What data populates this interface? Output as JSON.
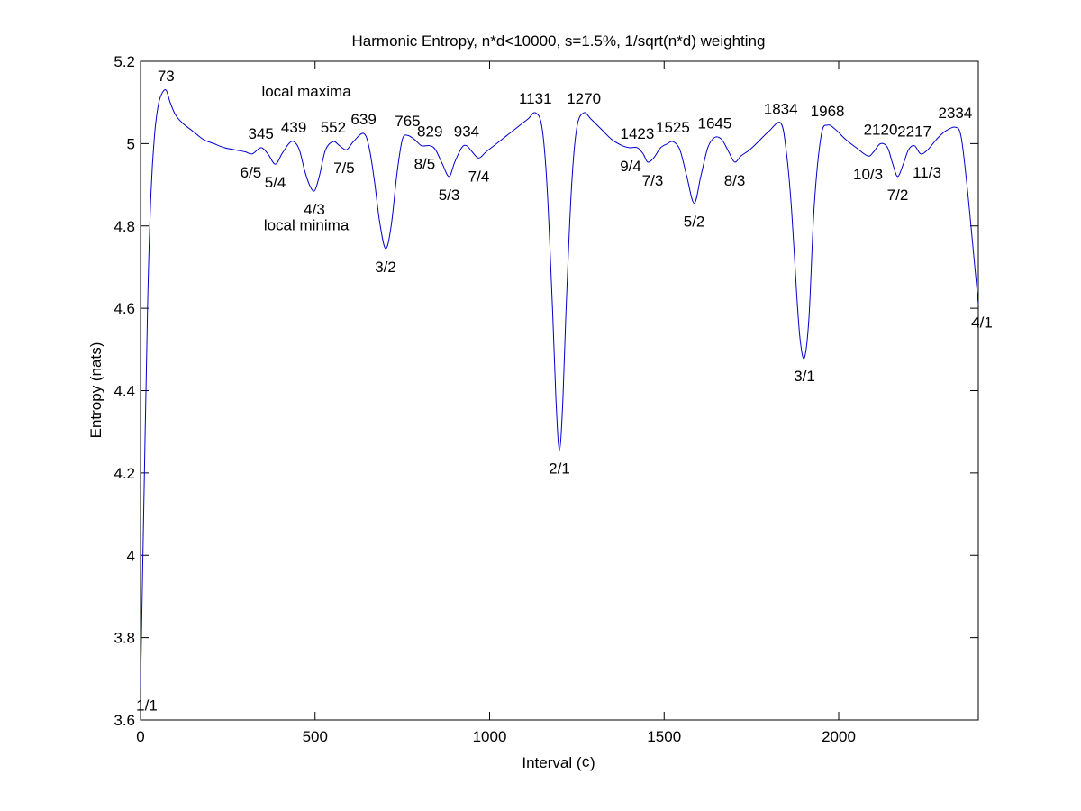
{
  "chart_data": {
    "type": "line",
    "title": "Harmonic Entropy, n*d<10000, s=1.5%, 1/sqrt(n*d) weighting",
    "xlabel": "Interval (¢)",
    "ylabel": "Entropy (nats)",
    "xlim": [
      0,
      2400
    ],
    "ylim": [
      3.6,
      5.2
    ],
    "xticks": [
      0,
      500,
      1000,
      1500,
      2000
    ],
    "xtick_labels": [
      "0",
      "500",
      "1000",
      "1500",
      "2000"
    ],
    "yticks": [
      3.6,
      3.8,
      4.0,
      4.2,
      4.4,
      4.6,
      4.8,
      5.0,
      5.2
    ],
    "ytick_labels": [
      "3.6",
      "3.8",
      "4",
      "4.2",
      "4.4",
      "4.6",
      "4.8",
      "5",
      "5.2"
    ],
    "grid": false,
    "line_color": "#0000cc",
    "series": [
      {
        "x": [
          0,
          10,
          20,
          30,
          40,
          50,
          60,
          73,
          85,
          100,
          120,
          150,
          180,
          210,
          240,
          270,
          300,
          320,
          345,
          365,
          386,
          405,
          425,
          439,
          455,
          470,
          484,
          498,
          512,
          530,
          552,
          570,
          590,
          610,
          639,
          655,
          670,
          685,
          702,
          718,
          735,
          750,
          765,
          785,
          805,
          829,
          845,
          865,
          884,
          900,
          920,
          934,
          950,
          969,
          990,
          1020,
          1050,
          1080,
          1110,
          1131,
          1150,
          1165,
          1180,
          1190,
          1200,
          1210,
          1220,
          1235,
          1250,
          1270,
          1290,
          1320,
          1350,
          1380,
          1400,
          1423,
          1440,
          1453,
          1470,
          1490,
          1510,
          1525,
          1545,
          1565,
          1586,
          1605,
          1625,
          1645,
          1665,
          1685,
          1702,
          1720,
          1745,
          1770,
          1800,
          1834,
          1850,
          1865,
          1880,
          1890,
          1902,
          1915,
          1930,
          1950,
          1968,
          1990,
          2020,
          2050,
          2084,
          2100,
          2120,
          2140,
          2155,
          2169,
          2185,
          2200,
          2217,
          2235,
          2255,
          2280,
          2305,
          2334,
          2350,
          2365,
          2380,
          2400
        ],
        "y": [
          3.68,
          4.15,
          4.6,
          4.88,
          5.02,
          5.09,
          5.12,
          5.13,
          5.1,
          5.07,
          5.05,
          5.03,
          5.01,
          5.0,
          4.99,
          4.985,
          4.98,
          4.975,
          4.99,
          4.975,
          4.95,
          4.975,
          5.0,
          5.005,
          4.985,
          4.935,
          4.9,
          4.885,
          4.92,
          4.985,
          5.005,
          4.995,
          4.985,
          5.005,
          5.025,
          4.99,
          4.91,
          4.81,
          4.745,
          4.8,
          4.93,
          5.01,
          5.02,
          5.01,
          4.995,
          4.995,
          4.985,
          4.95,
          4.92,
          4.955,
          4.99,
          4.995,
          4.98,
          4.965,
          4.98,
          5.0,
          5.02,
          5.04,
          5.06,
          5.075,
          5.04,
          4.89,
          4.6,
          4.38,
          4.255,
          4.38,
          4.62,
          4.9,
          5.04,
          5.075,
          5.06,
          5.035,
          5.01,
          4.995,
          4.99,
          4.99,
          4.975,
          4.955,
          4.965,
          4.99,
          5.0,
          5.005,
          4.985,
          4.92,
          4.855,
          4.92,
          4.99,
          5.015,
          5.01,
          4.98,
          4.955,
          4.97,
          4.985,
          5.005,
          5.03,
          5.05,
          4.98,
          4.84,
          4.63,
          4.52,
          4.48,
          4.58,
          4.85,
          5.02,
          5.045,
          5.035,
          5.01,
          4.99,
          4.97,
          4.98,
          5.0,
          4.99,
          4.95,
          4.92,
          4.95,
          4.985,
          4.995,
          4.975,
          4.985,
          5.01,
          5.03,
          5.04,
          5.02,
          4.92,
          4.79,
          4.61
        ]
      }
    ],
    "maxima_labels": [
      {
        "text": "73",
        "x": 73,
        "y": 5.13
      },
      {
        "text": "345",
        "x": 345,
        "y": 4.99
      },
      {
        "text": "439",
        "x": 439,
        "y": 5.005
      },
      {
        "text": "552",
        "x": 552,
        "y": 5.005
      },
      {
        "text": "639",
        "x": 639,
        "y": 5.025
      },
      {
        "text": "765",
        "x": 765,
        "y": 5.02
      },
      {
        "text": "829",
        "x": 829,
        "y": 4.995
      },
      {
        "text": "934",
        "x": 934,
        "y": 4.995
      },
      {
        "text": "1131",
        "x": 1131,
        "y": 5.075
      },
      {
        "text": "1270",
        "x": 1270,
        "y": 5.075
      },
      {
        "text": "1423",
        "x": 1423,
        "y": 4.99
      },
      {
        "text": "1525",
        "x": 1525,
        "y": 5.005
      },
      {
        "text": "1645",
        "x": 1645,
        "y": 5.015
      },
      {
        "text": "1834",
        "x": 1834,
        "y": 5.05
      },
      {
        "text": "1968",
        "x": 1968,
        "y": 5.045
      },
      {
        "text": "2120",
        "x": 2120,
        "y": 5.0
      },
      {
        "text": "2217",
        "x": 2217,
        "y": 4.995
      },
      {
        "text": "2334",
        "x": 2334,
        "y": 5.04
      }
    ],
    "minima_labels": [
      {
        "text": "1/1",
        "x": 0,
        "y": 3.68
      },
      {
        "text": "6/5",
        "x": 316,
        "y": 4.975
      },
      {
        "text": "5/4",
        "x": 386,
        "y": 4.95
      },
      {
        "text": "4/3",
        "x": 498,
        "y": 4.885
      },
      {
        "text": "7/5",
        "x": 583,
        "y": 4.985
      },
      {
        "text": "3/2",
        "x": 702,
        "y": 4.745
      },
      {
        "text": "8/5",
        "x": 814,
        "y": 4.995
      },
      {
        "text": "5/3",
        "x": 884,
        "y": 4.92
      },
      {
        "text": "7/4",
        "x": 969,
        "y": 4.965
      },
      {
        "text": "2/1",
        "x": 1200,
        "y": 4.255
      },
      {
        "text": "9/4",
        "x": 1404,
        "y": 4.99
      },
      {
        "text": "7/3",
        "x": 1467,
        "y": 4.955
      },
      {
        "text": "5/2",
        "x": 1586,
        "y": 4.855
      },
      {
        "text": "8/3",
        "x": 1702,
        "y": 4.955
      },
      {
        "text": "3/1",
        "x": 1902,
        "y": 4.48
      },
      {
        "text": "10/3",
        "x": 2084,
        "y": 4.97
      },
      {
        "text": "7/2",
        "x": 2169,
        "y": 4.92
      },
      {
        "text": "11/3",
        "x": 2253,
        "y": 4.975
      },
      {
        "text": "4/1",
        "x": 2400,
        "y": 4.61
      }
    ],
    "annotations": [
      {
        "text": "local maxima",
        "x": 475,
        "y": 5.115
      },
      {
        "text": "local minima",
        "x": 475,
        "y": 4.79
      }
    ]
  }
}
